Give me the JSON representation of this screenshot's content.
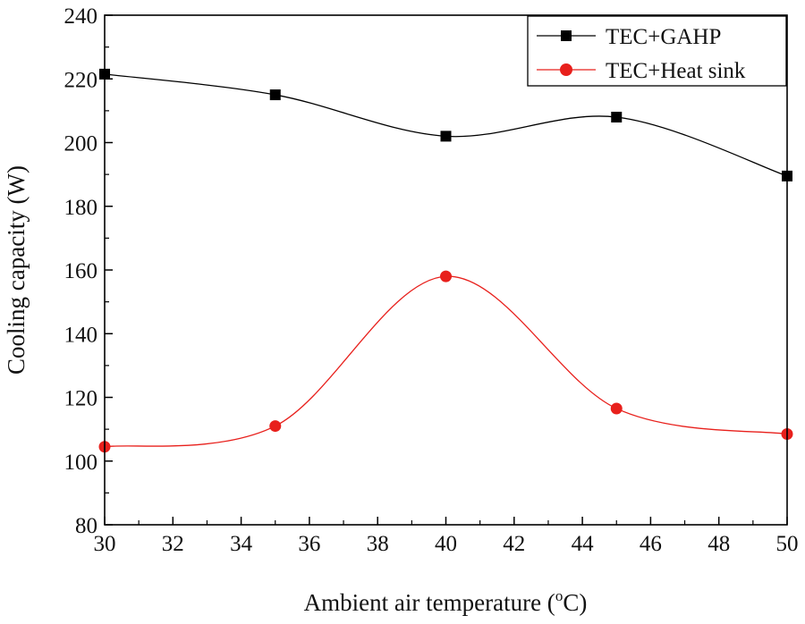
{
  "chart_data": {
    "type": "line",
    "title": "",
    "xlabel_prefix": "Ambient air temperature (",
    "xlabel_sup": "o",
    "xlabel_suffix": "C)",
    "ylabel": "Cooling capacity (W)",
    "xlim": [
      30,
      50
    ],
    "ylim": [
      80,
      240
    ],
    "xticks": [
      30,
      32,
      34,
      36,
      38,
      40,
      42,
      44,
      46,
      48,
      50
    ],
    "yticks": [
      80,
      100,
      120,
      140,
      160,
      180,
      200,
      220,
      240
    ],
    "x": [
      30,
      35,
      40,
      45,
      50
    ],
    "legend_position": "top-right",
    "grid": false,
    "series": [
      {
        "name": "TEC+GAHP",
        "values": [
          221.5,
          215,
          202,
          208,
          189.5
        ],
        "color": "#000000",
        "marker": "square"
      },
      {
        "name": "TEC+Heat sink",
        "values": [
          104.5,
          111,
          158,
          116.5,
          108.5
        ],
        "color": "#e8201c",
        "marker": "circle"
      }
    ]
  }
}
